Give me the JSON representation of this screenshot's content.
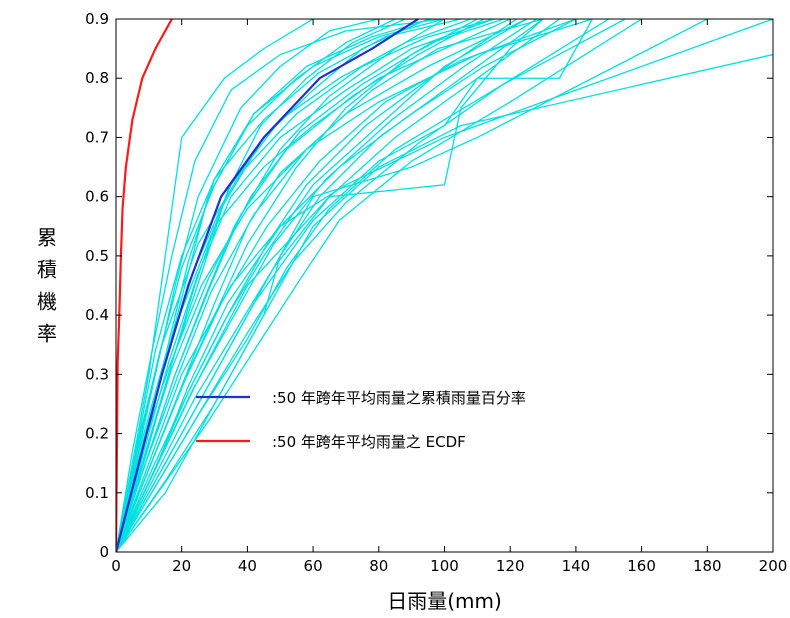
{
  "chart_data": {
    "type": "line",
    "title": "",
    "xlabel": "日雨量(mm)",
    "ylabel": "累積機率",
    "xlim": [
      0,
      200
    ],
    "ylim": [
      0,
      0.9
    ],
    "x_ticks": [
      "0",
      "20",
      "40",
      "60",
      "80",
      "100",
      "120",
      "140",
      "160",
      "180",
      "200"
    ],
    "y_ticks": [
      "0",
      "0.1",
      "0.2",
      "0.3",
      "0.4",
      "0.5",
      "0.6",
      "0.7",
      "0.8",
      "0.9"
    ],
    "legend_position": "lower-center",
    "grid": false,
    "series": [
      {
        "name": ":50 年跨年平均雨量之累積雨量百分率",
        "color": "#1f2fd0",
        "x": [
          0,
          7,
          14,
          22,
          32,
          45,
          62,
          78,
          92
        ],
        "y": [
          0,
          0.15,
          0.3,
          0.45,
          0.6,
          0.7,
          0.8,
          0.85,
          0.9
        ]
      },
      {
        "name": ":50 年跨年平均雨量之 ECDF",
        "color": "#ff1a1a",
        "x": [
          0,
          0.5,
          1,
          1.5,
          2,
          3,
          5,
          8,
          12,
          17
        ],
        "y": [
          0,
          0.32,
          0.4,
          0.5,
          0.58,
          0.65,
          0.73,
          0.8,
          0.85,
          0.9
        ]
      }
    ],
    "background_series": {
      "color": "#00e0e0",
      "lines": [
        {
          "x": [
            0,
            5,
            10,
            15,
            20,
            33,
            45,
            60,
            75,
            90
          ],
          "y": [
            0,
            0.15,
            0.3,
            0.5,
            0.7,
            0.8,
            0.85,
            0.9,
            0.9,
            0.9
          ]
        },
        {
          "x": [
            0,
            6,
            12,
            18,
            25,
            38,
            50,
            65,
            80
          ],
          "y": [
            0,
            0.15,
            0.3,
            0.45,
            0.6,
            0.75,
            0.82,
            0.88,
            0.9
          ]
        },
        {
          "x": [
            0,
            7,
            14,
            21,
            28,
            40,
            55,
            70,
            85
          ],
          "y": [
            0,
            0.15,
            0.3,
            0.45,
            0.6,
            0.72,
            0.8,
            0.86,
            0.9
          ]
        },
        {
          "x": [
            0,
            8,
            16,
            24,
            32,
            45,
            60,
            75,
            95
          ],
          "y": [
            0,
            0.15,
            0.3,
            0.45,
            0.58,
            0.7,
            0.78,
            0.85,
            0.9
          ]
        },
        {
          "x": [
            0,
            9,
            18,
            27,
            36,
            50,
            65,
            85,
            100
          ],
          "y": [
            0,
            0.15,
            0.3,
            0.43,
            0.55,
            0.68,
            0.77,
            0.85,
            0.9
          ]
        },
        {
          "x": [
            0,
            10,
            20,
            30,
            40,
            55,
            70,
            90,
            110
          ],
          "y": [
            0,
            0.14,
            0.28,
            0.4,
            0.52,
            0.65,
            0.75,
            0.84,
            0.9
          ]
        },
        {
          "x": [
            0,
            11,
            22,
            33,
            45,
            60,
            80,
            100,
            125
          ],
          "y": [
            0,
            0.14,
            0.27,
            0.39,
            0.5,
            0.62,
            0.72,
            0.82,
            0.9
          ]
        },
        {
          "x": [
            0,
            12,
            24,
            36,
            48,
            65,
            85,
            110,
            135
          ],
          "y": [
            0,
            0.13,
            0.26,
            0.37,
            0.48,
            0.6,
            0.7,
            0.8,
            0.9
          ]
        },
        {
          "x": [
            0,
            8,
            18,
            30,
            45,
            60,
            80,
            100,
            120
          ],
          "y": [
            0,
            0.18,
            0.38,
            0.55,
            0.65,
            0.72,
            0.8,
            0.85,
            0.9
          ]
        },
        {
          "x": [
            0,
            6,
            14,
            25,
            38,
            55,
            75,
            95,
            115
          ],
          "y": [
            0,
            0.17,
            0.35,
            0.52,
            0.64,
            0.74,
            0.82,
            0.87,
            0.9
          ]
        },
        {
          "x": [
            0,
            7,
            15,
            24,
            35,
            50,
            68,
            88,
            108
          ],
          "y": [
            0,
            0.16,
            0.32,
            0.48,
            0.62,
            0.73,
            0.8,
            0.86,
            0.9
          ]
        },
        {
          "x": [
            0,
            9,
            19,
            29,
            42,
            58,
            78,
            98,
            130
          ],
          "y": [
            0,
            0.15,
            0.3,
            0.44,
            0.57,
            0.68,
            0.78,
            0.85,
            0.9
          ]
        },
        {
          "x": [
            0,
            10,
            21,
            32,
            46,
            62,
            82,
            105,
            140
          ],
          "y": [
            0,
            0.14,
            0.29,
            0.42,
            0.55,
            0.66,
            0.76,
            0.83,
            0.9
          ]
        },
        {
          "x": [
            0,
            5,
            11,
            17,
            24,
            35,
            50,
            70,
            100
          ],
          "y": [
            0,
            0.17,
            0.34,
            0.5,
            0.66,
            0.78,
            0.84,
            0.88,
            0.9
          ]
        },
        {
          "x": [
            0,
            6,
            13,
            20,
            30,
            42,
            58,
            78,
            96
          ],
          "y": [
            0,
            0.16,
            0.33,
            0.48,
            0.62,
            0.74,
            0.82,
            0.87,
            0.9
          ]
        },
        {
          "x": [
            0,
            7,
            16,
            26,
            40,
            58,
            80,
            110,
            145
          ],
          "y": [
            0,
            0.16,
            0.31,
            0.45,
            0.58,
            0.68,
            0.76,
            0.84,
            0.9
          ]
        },
        {
          "x": [
            0,
            8,
            17,
            28,
            41,
            56,
            75,
            96,
            118
          ],
          "y": [
            0,
            0.15,
            0.31,
            0.46,
            0.6,
            0.71,
            0.79,
            0.86,
            0.9
          ]
        },
        {
          "x": [
            0,
            12,
            25,
            38,
            50,
            62,
            80,
            105,
            130
          ],
          "y": [
            0,
            0.12,
            0.25,
            0.38,
            0.5,
            0.6,
            0.7,
            0.8,
            0.9
          ]
        },
        {
          "x": [
            0,
            13,
            26,
            40,
            52,
            65,
            85,
            115,
            150
          ],
          "y": [
            0,
            0.12,
            0.24,
            0.36,
            0.48,
            0.58,
            0.68,
            0.78,
            0.9
          ]
        },
        {
          "x": [
            0,
            14,
            28,
            42,
            56,
            68,
            90,
            120,
            160
          ],
          "y": [
            0,
            0.11,
            0.22,
            0.34,
            0.46,
            0.56,
            0.66,
            0.76,
            0.9
          ]
        },
        {
          "x": [
            0,
            10,
            20,
            30,
            40,
            50,
            70,
            95,
            125
          ],
          "y": [
            0,
            0.14,
            0.28,
            0.42,
            0.55,
            0.64,
            0.74,
            0.82,
            0.9
          ]
        },
        {
          "x": [
            0,
            8,
            16,
            25,
            35,
            50,
            70,
            90,
            115
          ],
          "y": [
            0,
            0.16,
            0.32,
            0.47,
            0.6,
            0.7,
            0.78,
            0.85,
            0.9
          ]
        },
        {
          "x": [
            0,
            6,
            12,
            20,
            30,
            45,
            62,
            82,
            105
          ],
          "y": [
            0,
            0.17,
            0.34,
            0.5,
            0.63,
            0.73,
            0.81,
            0.87,
            0.9
          ]
        },
        {
          "x": [
            0,
            9,
            18,
            28,
            38,
            52,
            72,
            92,
            112
          ],
          "y": [
            0,
            0.15,
            0.3,
            0.44,
            0.57,
            0.68,
            0.77,
            0.84,
            0.9
          ]
        },
        {
          "x": [
            0,
            11,
            22,
            34,
            46,
            58,
            76,
            98,
            122
          ],
          "y": [
            0,
            0.13,
            0.27,
            0.4,
            0.52,
            0.62,
            0.72,
            0.81,
            0.9
          ]
        },
        {
          "x": [
            0,
            15,
            30,
            45,
            50,
            60,
            90,
            110,
            180
          ],
          "y": [
            0,
            0.1,
            0.25,
            0.4,
            0.5,
            0.6,
            0.65,
            0.7,
            0.9
          ]
        },
        {
          "x": [
            0,
            15,
            30,
            45,
            60,
            80,
            105,
            200
          ],
          "y": [
            0,
            0.12,
            0.25,
            0.4,
            0.55,
            0.65,
            0.72,
            0.84
          ]
        },
        {
          "x": [
            0,
            14,
            28,
            42,
            60,
            80,
            100,
            110,
            135,
            145
          ],
          "y": [
            0,
            0.14,
            0.28,
            0.42,
            0.56,
            0.66,
            0.72,
            0.8,
            0.8,
            0.9
          ]
        },
        {
          "x": [
            0,
            12,
            24,
            40,
            65,
            100,
            105,
            120,
            130
          ],
          "y": [
            0,
            0.14,
            0.28,
            0.45,
            0.6,
            0.62,
            0.75,
            0.85,
            0.9
          ]
        },
        {
          "x": [
            0,
            10,
            20,
            35,
            50,
            70,
            100,
            200
          ],
          "y": [
            0,
            0.15,
            0.3,
            0.45,
            0.55,
            0.62,
            0.7,
            0.9
          ]
        },
        {
          "x": [
            0,
            12,
            22,
            34,
            50,
            68,
            90,
            112,
            140
          ],
          "y": [
            0,
            0.14,
            0.28,
            0.42,
            0.55,
            0.65,
            0.74,
            0.82,
            0.9
          ]
        },
        {
          "x": [
            0,
            7,
            15,
            22,
            30,
            42,
            60,
            80,
            100
          ],
          "y": [
            0,
            0.17,
            0.33,
            0.49,
            0.63,
            0.74,
            0.82,
            0.87,
            0.9
          ]
        },
        {
          "x": [
            0,
            9,
            17,
            26,
            34,
            44,
            58,
            72,
            88
          ],
          "y": [
            0,
            0.16,
            0.32,
            0.47,
            0.61,
            0.72,
            0.8,
            0.86,
            0.9
          ]
        },
        {
          "x": [
            0,
            11,
            23,
            36,
            48,
            64,
            84,
            106,
            128
          ],
          "y": [
            0,
            0.13,
            0.27,
            0.4,
            0.52,
            0.63,
            0.73,
            0.82,
            0.9
          ]
        },
        {
          "x": [
            0,
            13,
            27,
            40,
            54,
            70,
            92,
            118,
            155
          ],
          "y": [
            0,
            0.12,
            0.25,
            0.37,
            0.49,
            0.59,
            0.69,
            0.79,
            0.9
          ]
        }
      ]
    }
  }
}
